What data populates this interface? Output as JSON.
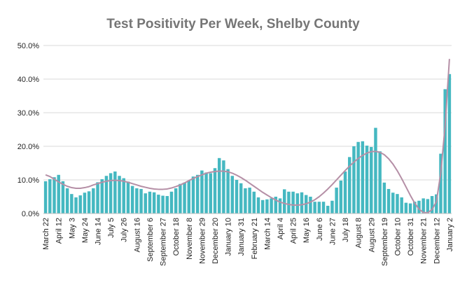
{
  "chart_data": {
    "type": "bar",
    "title": "Test Positivity Per Week, Shelby County",
    "categories": [
      "March 22",
      null,
      null,
      "April 12",
      null,
      null,
      "May 3",
      null,
      null,
      "May 24",
      null,
      null,
      "June 14",
      null,
      null,
      "July 5",
      null,
      null,
      "July 26",
      null,
      null,
      "August 16",
      null,
      null,
      "September 6",
      null,
      null,
      "September 27",
      null,
      null,
      "October 18",
      null,
      null,
      "November 8",
      null,
      null,
      "November 29",
      null,
      null,
      "December 20",
      null,
      null,
      "January 10",
      null,
      null,
      "January 31",
      null,
      null,
      "February 21",
      null,
      null,
      "March 14",
      null,
      null,
      "April 4",
      null,
      null,
      "April 25",
      null,
      null,
      "May 16",
      null,
      null,
      "June 6",
      null,
      null,
      "June 27",
      null,
      null,
      "July 18",
      null,
      null,
      "August 8",
      null,
      null,
      "August 29",
      null,
      null,
      "September 19",
      null,
      null,
      "October 10",
      null,
      null,
      "October 31",
      null,
      null,
      "November 21",
      null,
      null,
      "December 12",
      null,
      null,
      "January 2"
    ],
    "series": [
      {
        "color": "#45b8c1",
        "values": [
          9.6,
          10.2,
          10.8,
          11.5,
          9.6,
          7.5,
          5.8,
          4.8,
          5.4,
          6.2,
          6.6,
          7.5,
          9.3,
          10.2,
          11.2,
          12.0,
          12.5,
          11.2,
          10.5,
          9.5,
          8.2,
          7.5,
          7.3,
          6.0,
          6.5,
          6.3,
          5.6,
          5.3,
          5.2,
          6.5,
          7.5,
          8.8,
          9.2,
          9.8,
          11.0,
          11.5,
          12.8,
          12.2,
          12.0,
          13.5,
          16.5,
          15.8,
          13.2,
          11.2,
          10.0,
          9.0,
          7.5,
          7.7,
          6.5,
          4.8,
          4.0,
          4.2,
          4.5,
          5.0,
          4.5,
          7.2,
          6.5,
          6.5,
          6.0,
          6.3,
          5.5,
          5.0,
          3.5,
          3.5,
          3.5,
          2.3,
          3.8,
          7.7,
          9.8,
          12.5,
          16.8,
          20.0,
          21.3,
          21.5,
          20.2,
          19.8,
          25.5,
          18.5,
          9.2,
          7.3,
          6.2,
          5.8,
          4.8,
          3.2,
          3.0,
          3.5,
          3.8,
          4.5,
          4.3,
          5.2,
          5.7,
          17.8,
          37.0,
          41.5
        ]
      },
      {
        "type": "line",
        "color": "#b58fa6",
        "values": [
          11.5,
          11.0,
          10.2,
          9.4,
          8.7,
          8.1,
          7.7,
          7.5,
          7.5,
          7.7,
          8.0,
          8.5,
          8.9,
          9.3,
          9.6,
          9.8,
          9.9,
          9.8,
          9.6,
          9.3,
          8.9,
          8.5,
          8.1,
          7.8,
          7.5,
          7.3,
          7.2,
          7.2,
          7.3,
          7.6,
          8.0,
          8.5,
          9.1,
          9.8,
          10.4,
          11.0,
          11.5,
          12.0,
          12.3,
          12.5,
          12.6,
          12.6,
          12.4,
          12.0,
          11.4,
          10.7,
          9.9,
          9.0,
          8.1,
          7.2,
          6.3,
          5.5,
          4.7,
          4.0,
          3.4,
          3.0,
          2.7,
          2.5,
          2.5,
          2.6,
          2.9,
          3.4,
          4.1,
          5.0,
          6.1,
          7.3,
          8.6,
          10.0,
          11.4,
          12.8,
          14.1,
          15.3,
          16.4,
          17.3,
          18.0,
          18.4,
          18.5,
          18.2,
          17.5,
          16.3,
          14.7,
          12.7,
          10.4,
          7.9,
          5.4,
          3.1,
          1.3,
          0.3,
          0.2,
          1.2,
          3.5,
          12.0,
          26.0,
          46.0
        ]
      }
    ],
    "ylim": [
      0,
      50
    ],
    "yticks": [
      {
        "value": 0,
        "label": "0.0%"
      },
      {
        "value": 10,
        "label": "10.0%"
      },
      {
        "value": 20,
        "label": "20.0%"
      },
      {
        "value": 30,
        "label": "30.0%"
      },
      {
        "value": 40,
        "label": "40.0%"
      },
      {
        "value": 50,
        "label": "50.0%"
      }
    ],
    "grid": true
  }
}
